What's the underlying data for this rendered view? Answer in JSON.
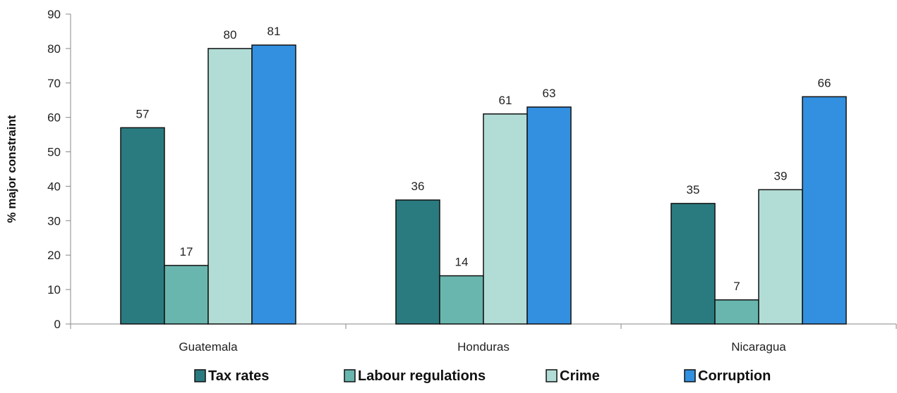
{
  "chart_data": {
    "type": "bar",
    "categories": [
      "Guatemala",
      "Honduras",
      "Nicaragua"
    ],
    "series": [
      {
        "name": "Tax rates",
        "values": [
          57,
          36,
          35
        ],
        "color": "#2a7b80"
      },
      {
        "name": "Labour regulations",
        "values": [
          17,
          14,
          7
        ],
        "color": "#69b6ae"
      },
      {
        "name": "Crime",
        "values": [
          80,
          61,
          39
        ],
        "color": "#b2ddd6"
      },
      {
        "name": "Corruption",
        "values": [
          81,
          63,
          66
        ],
        "color": "#3390e0"
      }
    ],
    "title": "",
    "xlabel": "",
    "ylabel": "% major constraint",
    "ylim": [
      0,
      90
    ],
    "yticks": [
      0,
      10,
      20,
      30,
      40,
      50,
      60,
      70,
      80,
      90
    ],
    "grid": false,
    "legend": "bottom"
  }
}
